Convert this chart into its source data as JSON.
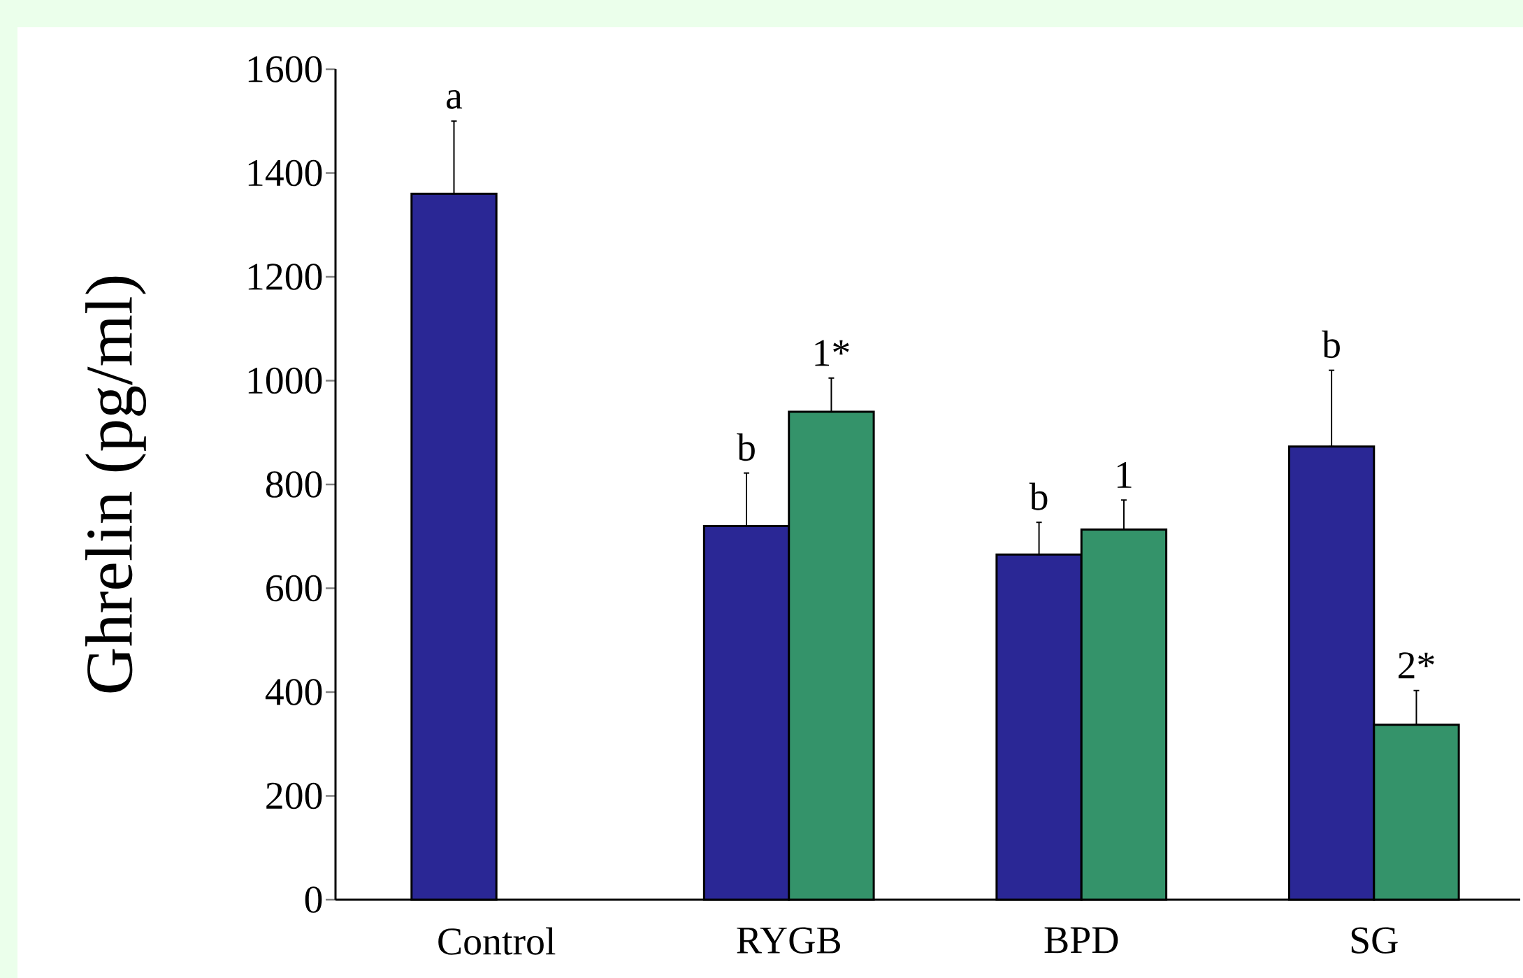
{
  "chart_data": {
    "type": "bar",
    "ylabel": "Ghrelin  (pg/ml)",
    "categories": [
      "Control",
      "RYGB",
      "BPD",
      "SG"
    ],
    "series": [
      {
        "color": "#2a2795",
        "values": [
          1360,
          720,
          665,
          873
        ],
        "errors": [
          [
            1360,
            1500
          ],
          [
            720,
            822
          ],
          [
            665,
            727
          ],
          [
            873,
            1020
          ]
        ]
      },
      {
        "color": "#34936a",
        "values": [
          null,
          940,
          713,
          337
        ],
        "errors": [
          null,
          [
            940,
            1005
          ],
          [
            713,
            770
          ],
          [
            337,
            403
          ]
        ]
      }
    ],
    "ylim": [
      0,
      1600
    ],
    "yticks": [
      0,
      200,
      400,
      600,
      800,
      1000,
      1200,
      1400,
      1600
    ],
    "annotations": [
      "a",
      "b",
      "1*",
      "b",
      "1",
      "b",
      "2*"
    ]
  }
}
